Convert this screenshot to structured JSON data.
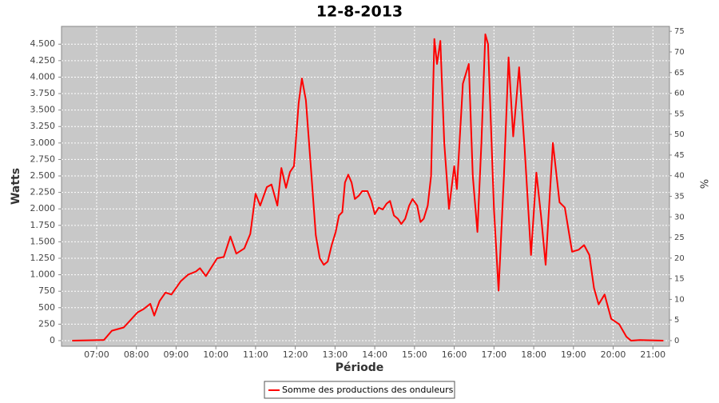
{
  "chart_data": {
    "type": "line",
    "title": "12-8-2013",
    "x_label": "Période",
    "y_label": "Watts",
    "y2_label": "%",
    "x": [
      "06:23",
      "07:11",
      "07:23",
      "07:41",
      "08:02",
      "08:11",
      "08:21",
      "08:27",
      "08:35",
      "08:44",
      "08:53",
      "09:07",
      "09:18",
      "09:30",
      "09:36",
      "09:45",
      "10:02",
      "10:12",
      "10:22",
      "10:31",
      "10:43",
      "10:52",
      "11:00",
      "11:07",
      "11:17",
      "11:24",
      "11:33",
      "11:39",
      "11:46",
      "11:52",
      "11:58",
      "12:05",
      "12:10",
      "12:16",
      "12:23",
      "12:31",
      "12:37",
      "12:43",
      "12:49",
      "12:55",
      "13:01",
      "13:06",
      "13:11",
      "13:15",
      "13:20",
      "13:25",
      "13:30",
      "13:36",
      "13:41",
      "13:49",
      "13:55",
      "14:00",
      "14:06",
      "14:12",
      "14:18",
      "14:23",
      "14:29",
      "14:35",
      "14:40",
      "14:46",
      "14:52",
      "14:57",
      "15:04",
      "15:09",
      "15:14",
      "15:20",
      "15:25",
      "15:28",
      "15:30",
      "15:34",
      "15:39",
      "15:45",
      "15:52",
      "16:00",
      "16:04",
      "16:13",
      "16:22",
      "16:28",
      "16:35",
      "16:41",
      "16:47",
      "16:51",
      "17:00",
      "17:07",
      "17:15",
      "17:22",
      "17:29",
      "17:38",
      "17:47",
      "17:56",
      "18:04",
      "18:11",
      "18:18",
      "18:29",
      "18:39",
      "18:47",
      "18:58",
      "19:08",
      "19:16",
      "19:24",
      "19:31",
      "19:38",
      "19:47",
      "19:57",
      "20:09",
      "20:20",
      "20:27",
      "20:40",
      "21:16"
    ],
    "series": [
      {
        "name": "Somme des productions des onduleurs",
        "color": "#ff0000",
        "values": [
          0,
          10,
          150,
          200,
          430,
          480,
          560,
          380,
          600,
          730,
          700,
          900,
          1000,
          1050,
          1100,
          980,
          1250,
          1270,
          1580,
          1320,
          1400,
          1620,
          2230,
          2050,
          2330,
          2370,
          2050,
          2620,
          2320,
          2560,
          2650,
          3600,
          3980,
          3650,
          2700,
          1600,
          1250,
          1150,
          1200,
          1450,
          1650,
          1900,
          1950,
          2400,
          2520,
          2400,
          2150,
          2200,
          2270,
          2270,
          2120,
          1920,
          2020,
          1990,
          2080,
          2120,
          1900,
          1850,
          1770,
          1850,
          2050,
          2150,
          2050,
          1800,
          1850,
          2050,
          2500,
          3800,
          4580,
          4200,
          4550,
          3000,
          2000,
          2650,
          2300,
          3900,
          4200,
          2500,
          1650,
          3000,
          4650,
          4500,
          2000,
          760,
          2500,
          4300,
          3100,
          4150,
          2800,
          1300,
          2550,
          1900,
          1150,
          3000,
          2100,
          2020,
          1350,
          1380,
          1450,
          1300,
          800,
          550,
          700,
          330,
          250,
          60,
          0,
          10,
          0
        ]
      }
    ],
    "xlim": [
      "06:07",
      "21:25"
    ],
    "xticks": [
      "07:00",
      "08:00",
      "09:00",
      "10:00",
      "11:00",
      "12:00",
      "13:00",
      "14:00",
      "15:00",
      "16:00",
      "17:00",
      "18:00",
      "19:00",
      "20:00",
      "21:00"
    ],
    "ylim": [
      -85,
      4770
    ],
    "yticks": [
      0,
      250,
      500,
      750,
      {
        "value": 1000,
        "label": "1.000"
      },
      {
        "value": 1250,
        "label": "1.250"
      },
      {
        "value": 1500,
        "label": "1.500"
      },
      {
        "value": 1750,
        "label": "1.750"
      },
      {
        "value": 2000,
        "label": "2.000"
      },
      {
        "value": 2250,
        "label": "2.250"
      },
      {
        "value": 2500,
        "label": "2.500"
      },
      {
        "value": 2750,
        "label": "2.750"
      },
      {
        "value": 3000,
        "label": "3.000"
      },
      {
        "value": 3250,
        "label": "3.250"
      },
      {
        "value": 3500,
        "label": "3.500"
      },
      {
        "value": 3750,
        "label": "3.750"
      },
      {
        "value": 4000,
        "label": "4.000"
      },
      {
        "value": 4250,
        "label": "4.250"
      },
      {
        "value": 4500,
        "label": "4.500"
      }
    ],
    "y2lim": [
      -1.36,
      76.2
    ],
    "y2ticks": [
      0,
      5,
      10,
      15,
      20,
      25,
      30,
      35,
      40,
      45,
      50,
      55,
      60,
      65,
      70,
      75
    ],
    "grid": true
  }
}
